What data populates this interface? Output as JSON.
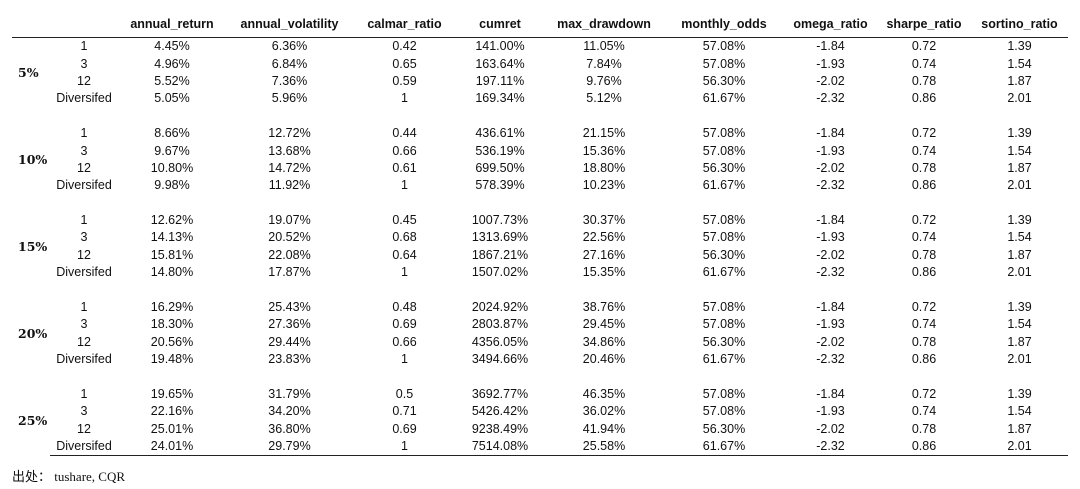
{
  "table": {
    "columns": [
      "annual_return",
      "annual_volatility",
      "calmar_ratio",
      "cumret",
      "max_drawdown",
      "monthly_odds",
      "omega_ratio",
      "sharpe_ratio",
      "sortino_ratio"
    ],
    "groups": [
      {
        "label": "5%",
        "rows": [
          {
            "period": "1",
            "values": [
              "4.45%",
              "6.36%",
              "0.42",
              "141.00%",
              "11.05%",
              "57.08%",
              "-1.84",
              "0.72",
              "1.39"
            ]
          },
          {
            "period": "3",
            "values": [
              "4.96%",
              "6.84%",
              "0.65",
              "163.64%",
              "7.84%",
              "57.08%",
              "-1.93",
              "0.74",
              "1.54"
            ]
          },
          {
            "period": "12",
            "values": [
              "5.52%",
              "7.36%",
              "0.59",
              "197.11%",
              "9.76%",
              "56.30%",
              "-2.02",
              "0.78",
              "1.87"
            ]
          },
          {
            "period": "Diversifed",
            "values": [
              "5.05%",
              "5.96%",
              "1",
              "169.34%",
              "5.12%",
              "61.67%",
              "-2.32",
              "0.86",
              "2.01"
            ]
          }
        ]
      },
      {
        "label": "10%",
        "rows": [
          {
            "period": "1",
            "values": [
              "8.66%",
              "12.72%",
              "0.44",
              "436.61%",
              "21.15%",
              "57.08%",
              "-1.84",
              "0.72",
              "1.39"
            ]
          },
          {
            "period": "3",
            "values": [
              "9.67%",
              "13.68%",
              "0.66",
              "536.19%",
              "15.36%",
              "57.08%",
              "-1.93",
              "0.74",
              "1.54"
            ]
          },
          {
            "period": "12",
            "values": [
              "10.80%",
              "14.72%",
              "0.61",
              "699.50%",
              "18.80%",
              "56.30%",
              "-2.02",
              "0.78",
              "1.87"
            ]
          },
          {
            "period": "Diversifed",
            "values": [
              "9.98%",
              "11.92%",
              "1",
              "578.39%",
              "10.23%",
              "61.67%",
              "-2.32",
              "0.86",
              "2.01"
            ]
          }
        ]
      },
      {
        "label": "15%",
        "rows": [
          {
            "period": "1",
            "values": [
              "12.62%",
              "19.07%",
              "0.45",
              "1007.73%",
              "30.37%",
              "57.08%",
              "-1.84",
              "0.72",
              "1.39"
            ]
          },
          {
            "period": "3",
            "values": [
              "14.13%",
              "20.52%",
              "0.68",
              "1313.69%",
              "22.56%",
              "57.08%",
              "-1.93",
              "0.74",
              "1.54"
            ]
          },
          {
            "period": "12",
            "values": [
              "15.81%",
              "22.08%",
              "0.64",
              "1867.21%",
              "27.16%",
              "56.30%",
              "-2.02",
              "0.78",
              "1.87"
            ]
          },
          {
            "period": "Diversifed",
            "values": [
              "14.80%",
              "17.87%",
              "1",
              "1507.02%",
              "15.35%",
              "61.67%",
              "-2.32",
              "0.86",
              "2.01"
            ]
          }
        ]
      },
      {
        "label": "20%",
        "rows": [
          {
            "period": "1",
            "values": [
              "16.29%",
              "25.43%",
              "0.48",
              "2024.92%",
              "38.76%",
              "57.08%",
              "-1.84",
              "0.72",
              "1.39"
            ]
          },
          {
            "period": "3",
            "values": [
              "18.30%",
              "27.36%",
              "0.69",
              "2803.87%",
              "29.45%",
              "57.08%",
              "-1.93",
              "0.74",
              "1.54"
            ]
          },
          {
            "period": "12",
            "values": [
              "20.56%",
              "29.44%",
              "0.66",
              "4356.05%",
              "34.86%",
              "56.30%",
              "-2.02",
              "0.78",
              "1.87"
            ]
          },
          {
            "period": "Diversifed",
            "values": [
              "19.48%",
              "23.83%",
              "1",
              "3494.66%",
              "20.46%",
              "61.67%",
              "-2.32",
              "0.86",
              "2.01"
            ]
          }
        ]
      },
      {
        "label": "25%",
        "rows": [
          {
            "period": "1",
            "values": [
              "19.65%",
              "31.79%",
              "0.5",
              "3692.77%",
              "46.35%",
              "57.08%",
              "-1.84",
              "0.72",
              "1.39"
            ]
          },
          {
            "period": "3",
            "values": [
              "22.16%",
              "34.20%",
              "0.71",
              "5426.42%",
              "36.02%",
              "57.08%",
              "-1.93",
              "0.74",
              "1.54"
            ]
          },
          {
            "period": "12",
            "values": [
              "25.01%",
              "36.80%",
              "0.69",
              "9238.49%",
              "41.94%",
              "56.30%",
              "-2.02",
              "0.78",
              "1.87"
            ]
          },
          {
            "period": "Diversifed",
            "values": [
              "24.01%",
              "29.79%",
              "1",
              "7514.08%",
              "25.58%",
              "61.67%",
              "-2.32",
              "0.86",
              "2.01"
            ]
          }
        ]
      }
    ]
  },
  "source": "出处： tushare, CQR"
}
